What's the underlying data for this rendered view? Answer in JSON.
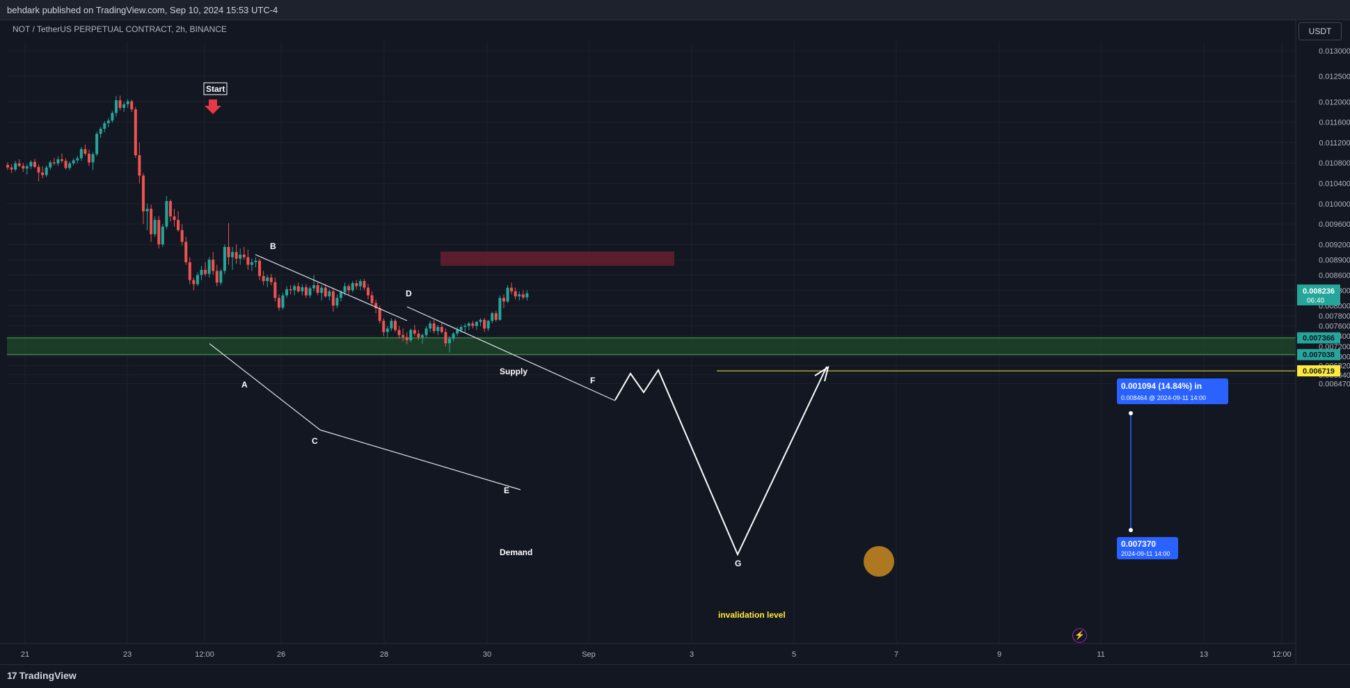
{
  "header": {
    "published": "behdark published on TradingView.com, Sep 10, 2024 15:53 UTC-4"
  },
  "symbol": "NOT / TetherUS PERPETUAL CONTRACT, 2h, BINANCE",
  "currency": "USDT",
  "brand": "TradingView",
  "colors": {
    "bg": "#131722",
    "up": "#26a69a",
    "down": "#ef5350",
    "demand": "#1f4a2a",
    "supply": "#6b1f2e",
    "accent": "#2962ff"
  },
  "chart_data": {
    "type": "candlestick",
    "y_axis_ticks": [
      "0.013000",
      "0.012500",
      "0.012000",
      "0.011600",
      "0.011200",
      "0.010800",
      "0.010400",
      "0.010000",
      "0.009600",
      "0.009200",
      "0.008900",
      "0.008600",
      "0.008300",
      "0.008000",
      "0.007800",
      "0.007600",
      "0.007400",
      "0.007200",
      "0.007000",
      "0.006820",
      "0.006640",
      "0.006470"
    ],
    "x_axis_ticks": [
      "21",
      "23",
      "12:00",
      "26",
      "28",
      "30",
      "Sep",
      "3",
      "5",
      "7",
      "9",
      "11",
      "13",
      "12:00"
    ],
    "last_price": {
      "value": "0.008236",
      "countdown": "06:40"
    },
    "price_tags": [
      {
        "value": "0.007366",
        "color": "#26a69a"
      },
      {
        "value": "0.007038",
        "color": "#26a69a"
      },
      {
        "value": "0.006719",
        "color": "#ffeb3b"
      }
    ],
    "annotations": {
      "start": "Start",
      "points": [
        "A",
        "B",
        "C",
        "D",
        "E",
        "F",
        "G"
      ],
      "supply": "Supply",
      "demand": "Demand",
      "invalidation": "invalidation level"
    },
    "measure": {
      "top_line1": "0.001094 (14.84%) in",
      "top_line2": "0.008464 @ 2024-09-11  14:00",
      "bottom_line1": "0.007370",
      "bottom_line2": "2024-09-11 14:00"
    },
    "candles": [
      [
        0.01076,
        0.01081,
        0.01066,
        0.01071
      ],
      [
        0.01071,
        0.01077,
        0.0106,
        0.01067
      ],
      [
        0.01067,
        0.01084,
        0.01063,
        0.01079
      ],
      [
        0.01079,
        0.01087,
        0.01072,
        0.01074
      ],
      [
        0.01074,
        0.0108,
        0.01062,
        0.01069
      ],
      [
        0.01069,
        0.01078,
        0.01057,
        0.01073
      ],
      [
        0.01073,
        0.01085,
        0.01068,
        0.01082
      ],
      [
        0.01082,
        0.01088,
        0.0107,
        0.01072
      ],
      [
        0.01072,
        0.01077,
        0.01044,
        0.01061
      ],
      [
        0.01061,
        0.01073,
        0.0105,
        0.01056
      ],
      [
        0.01056,
        0.01075,
        0.01052,
        0.01071
      ],
      [
        0.01071,
        0.01085,
        0.01066,
        0.01081
      ],
      [
        0.01081,
        0.0109,
        0.01075,
        0.01079
      ],
      [
        0.01079,
        0.01093,
        0.01074,
        0.01087
      ],
      [
        0.01087,
        0.01098,
        0.0108,
        0.01084
      ],
      [
        0.01084,
        0.01089,
        0.01067,
        0.0107
      ],
      [
        0.0107,
        0.01083,
        0.01066,
        0.01079
      ],
      [
        0.01079,
        0.01089,
        0.01075,
        0.01085
      ],
      [
        0.01085,
        0.01094,
        0.01079,
        0.01089
      ],
      [
        0.01089,
        0.01111,
        0.01084,
        0.01107
      ],
      [
        0.01107,
        0.01116,
        0.01094,
        0.01098
      ],
      [
        0.01098,
        0.01106,
        0.01074,
        0.01081
      ],
      [
        0.01081,
        0.01101,
        0.01066,
        0.01097
      ],
      [
        0.01097,
        0.01141,
        0.01093,
        0.01137
      ],
      [
        0.01137,
        0.01151,
        0.01129,
        0.01147
      ],
      [
        0.01147,
        0.01162,
        0.0114,
        0.01158
      ],
      [
        0.01158,
        0.01168,
        0.0115,
        0.01163
      ],
      [
        0.01163,
        0.01182,
        0.01159,
        0.01178
      ],
      [
        0.01178,
        0.01211,
        0.01171,
        0.01203
      ],
      [
        0.01203,
        0.01212,
        0.01183,
        0.01188
      ],
      [
        0.01188,
        0.012,
        0.0118,
        0.01195
      ],
      [
        0.01195,
        0.01205,
        0.01188,
        0.01201
      ],
      [
        0.01201,
        0.01204,
        0.0118,
        0.01185
      ],
      [
        0.01185,
        0.0119,
        0.0109,
        0.01095
      ],
      [
        0.01095,
        0.0112,
        0.0104,
        0.01055
      ],
      [
        0.01055,
        0.0106,
        0.0096,
        0.00985
      ],
      [
        0.00985,
        0.01,
        0.00948,
        0.0099
      ],
      [
        0.0099,
        0.00998,
        0.00925,
        0.0094
      ],
      [
        0.0094,
        0.00975,
        0.00935,
        0.00968
      ],
      [
        0.00968,
        0.00976,
        0.00912,
        0.0092
      ],
      [
        0.0092,
        0.0096,
        0.00915,
        0.00955
      ],
      [
        0.00955,
        0.01015,
        0.0095,
        0.01005
      ],
      [
        0.01005,
        0.01008,
        0.00965,
        0.00975
      ],
      [
        0.00975,
        0.0099,
        0.00955,
        0.00968
      ],
      [
        0.00968,
        0.00985,
        0.00945,
        0.00948
      ],
      [
        0.00948,
        0.0096,
        0.00918,
        0.00925
      ],
      [
        0.00925,
        0.00935,
        0.0088,
        0.00885
      ],
      [
        0.00885,
        0.00895,
        0.00842,
        0.0085
      ],
      [
        0.0085,
        0.00855,
        0.0083,
        0.00842
      ],
      [
        0.00842,
        0.00865,
        0.00838,
        0.0086
      ],
      [
        0.0086,
        0.00878,
        0.0085,
        0.0087
      ],
      [
        0.0087,
        0.00885,
        0.00858,
        0.00862
      ],
      [
        0.00862,
        0.00895,
        0.00855,
        0.0089
      ],
      [
        0.0089,
        0.00905,
        0.0086,
        0.00868
      ],
      [
        0.00868,
        0.0088,
        0.00838,
        0.00845
      ],
      [
        0.00845,
        0.00872,
        0.0084,
        0.00868
      ],
      [
        0.00868,
        0.0092,
        0.00862,
        0.00915
      ],
      [
        0.00915,
        0.00962,
        0.0088,
        0.00895
      ],
      [
        0.00895,
        0.00915,
        0.0087,
        0.00905
      ],
      [
        0.00905,
        0.0092,
        0.00882,
        0.00892
      ],
      [
        0.00892,
        0.00912,
        0.0088,
        0.009
      ],
      [
        0.009,
        0.00915,
        0.0089,
        0.00895
      ],
      [
        0.00895,
        0.0091,
        0.0087,
        0.0088
      ],
      [
        0.0088,
        0.00892,
        0.00868,
        0.00885
      ],
      [
        0.00885,
        0.00895,
        0.00875,
        0.00888
      ],
      [
        0.00888,
        0.00892,
        0.0085,
        0.00858
      ],
      [
        0.00858,
        0.00868,
        0.0084,
        0.00848
      ],
      [
        0.00848,
        0.0086,
        0.00836,
        0.00855
      ],
      [
        0.00855,
        0.00862,
        0.0084,
        0.00846
      ],
      [
        0.00846,
        0.00855,
        0.00808,
        0.00815
      ],
      [
        0.00815,
        0.00822,
        0.0079,
        0.00796
      ],
      [
        0.00796,
        0.00825,
        0.00792,
        0.0082
      ],
      [
        0.0082,
        0.00838,
        0.00815,
        0.00832
      ],
      [
        0.00832,
        0.0084,
        0.00822,
        0.0083
      ],
      [
        0.0083,
        0.00842,
        0.0082,
        0.00838
      ],
      [
        0.00838,
        0.00845,
        0.00825,
        0.00828
      ],
      [
        0.00828,
        0.00842,
        0.0082,
        0.00836
      ],
      [
        0.00836,
        0.00842,
        0.00815,
        0.0082
      ],
      [
        0.0082,
        0.00838,
        0.00815,
        0.00834
      ],
      [
        0.00834,
        0.0086,
        0.00828,
        0.0084
      ],
      [
        0.0084,
        0.00845,
        0.0082,
        0.00825
      ],
      [
        0.00825,
        0.0084,
        0.0081,
        0.00835
      ],
      [
        0.00835,
        0.00842,
        0.00815,
        0.00818
      ],
      [
        0.00818,
        0.00832,
        0.0081,
        0.00828
      ],
      [
        0.00828,
        0.00835,
        0.00788,
        0.008
      ],
      [
        0.008,
        0.00822,
        0.00795,
        0.00815
      ],
      [
        0.00815,
        0.0083,
        0.00808,
        0.00826
      ],
      [
        0.00826,
        0.00845,
        0.0082,
        0.00838
      ],
      [
        0.00838,
        0.00842,
        0.00822,
        0.0083
      ],
      [
        0.0083,
        0.00848,
        0.00826,
        0.00844
      ],
      [
        0.00844,
        0.0085,
        0.00832,
        0.00838
      ],
      [
        0.00838,
        0.00852,
        0.0083,
        0.00848
      ],
      [
        0.00848,
        0.00852,
        0.0083,
        0.00835
      ],
      [
        0.00835,
        0.00842,
        0.00812,
        0.0082
      ],
      [
        0.0082,
        0.00828,
        0.008,
        0.00805
      ],
      [
        0.00805,
        0.00812,
        0.00785,
        0.00795
      ],
      [
        0.00795,
        0.008,
        0.00765,
        0.0077
      ],
      [
        0.0077,
        0.00775,
        0.0074,
        0.00748
      ],
      [
        0.00748,
        0.0076,
        0.00738,
        0.00755
      ],
      [
        0.00755,
        0.00775,
        0.0075,
        0.0077
      ],
      [
        0.0077,
        0.00774,
        0.00748,
        0.00752
      ],
      [
        0.00752,
        0.0076,
        0.00735,
        0.00742
      ],
      [
        0.00742,
        0.00755,
        0.0073,
        0.00738
      ],
      [
        0.00738,
        0.00748,
        0.00724,
        0.00732
      ],
      [
        0.00732,
        0.00755,
        0.00728,
        0.00752
      ],
      [
        0.00752,
        0.00762,
        0.0074,
        0.00745
      ],
      [
        0.00745,
        0.00752,
        0.00732,
        0.00738
      ],
      [
        0.00738,
        0.00745,
        0.00725,
        0.00742
      ],
      [
        0.00742,
        0.0076,
        0.00738,
        0.00755
      ],
      [
        0.00755,
        0.0077,
        0.00748,
        0.00765
      ],
      [
        0.00765,
        0.00772,
        0.00745,
        0.0075
      ],
      [
        0.0075,
        0.00762,
        0.00742,
        0.00758
      ],
      [
        0.00758,
        0.00768,
        0.00745,
        0.00748
      ],
      [
        0.00748,
        0.00755,
        0.0072,
        0.00726
      ],
      [
        0.00726,
        0.0074,
        0.00708,
        0.00735
      ],
      [
        0.00735,
        0.00748,
        0.0073,
        0.00745
      ],
      [
        0.00745,
        0.00758,
        0.0074,
        0.00752
      ],
      [
        0.00752,
        0.00762,
        0.00746,
        0.00758
      ],
      [
        0.00758,
        0.00765,
        0.00748,
        0.0076
      ],
      [
        0.0076,
        0.00768,
        0.00752,
        0.00765
      ],
      [
        0.00765,
        0.0077,
        0.00755,
        0.0076
      ],
      [
        0.0076,
        0.0077,
        0.00752,
        0.00768
      ],
      [
        0.00768,
        0.00775,
        0.0076,
        0.00772
      ],
      [
        0.00772,
        0.00776,
        0.00748,
        0.00755
      ],
      [
        0.00755,
        0.00772,
        0.0075,
        0.0077
      ],
      [
        0.0077,
        0.00788,
        0.00765,
        0.00785
      ],
      [
        0.00785,
        0.0079,
        0.00768,
        0.00772
      ],
      [
        0.00772,
        0.0082,
        0.0077,
        0.00815
      ],
      [
        0.00815,
        0.00822,
        0.00795,
        0.00808
      ],
      [
        0.00808,
        0.0084,
        0.00805,
        0.00835
      ],
      [
        0.00835,
        0.00845,
        0.00822,
        0.00828
      ],
      [
        0.00828,
        0.00835,
        0.00812,
        0.00818
      ],
      [
        0.00818,
        0.00828,
        0.0081,
        0.00822
      ],
      [
        0.00822,
        0.0083,
        0.00812,
        0.00816
      ],
      [
        0.00816,
        0.0083,
        0.0081,
        0.00824
      ]
    ]
  }
}
